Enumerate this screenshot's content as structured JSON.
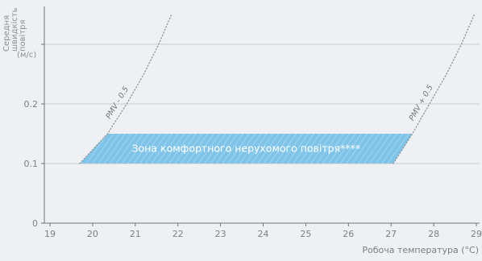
{
  "chart_data": {
    "type": "area",
    "ylabel_lines": [
      "Середня",
      "швидкість",
      "повітря"
    ],
    "ylabel_unit": "(м/с)",
    "xlabel": "Робоча температура (°C)",
    "x_ticks": [
      19,
      20,
      21,
      22,
      23,
      24,
      25,
      26,
      27,
      28,
      29
    ],
    "y_ticks": [
      {
        "value": 0,
        "label": "0"
      },
      {
        "value": 0.1,
        "label": "0.1"
      },
      {
        "value": 0.2,
        "label": "0.2"
      },
      {
        "value": 0.3,
        "label": ""
      }
    ],
    "xlim": [
      18.9,
      29.1
    ],
    "ylim": [
      0,
      0.36
    ],
    "grid": true,
    "comfort_zone": {
      "label": "Зона комфортного нерухомого повітря****",
      "polygon": [
        [
          19.7,
          0.1
        ],
        [
          20.35,
          0.15
        ],
        [
          27.5,
          0.15
        ],
        [
          27.05,
          0.1
        ]
      ],
      "fill": "#7fc4e8"
    },
    "curves": [
      {
        "label": "PMV - 0.5",
        "points": [
          [
            19.7,
            0.1
          ],
          [
            20.35,
            0.15
          ],
          [
            20.8,
            0.2
          ],
          [
            21.2,
            0.25
          ],
          [
            21.55,
            0.3
          ],
          [
            21.85,
            0.35
          ]
        ]
      },
      {
        "label": "PMV + 0.5",
        "points": [
          [
            27.05,
            0.1
          ],
          [
            27.5,
            0.15
          ],
          [
            27.9,
            0.2
          ],
          [
            28.3,
            0.25
          ],
          [
            28.65,
            0.3
          ],
          [
            28.95,
            0.35
          ]
        ]
      }
    ]
  },
  "colors": {
    "background": "#eef0f3",
    "grid": "#c9ccd1",
    "axis": "#6e737a",
    "curve": "#8e9399",
    "zone_fill": "#7fc4e8",
    "zone_text": "#ffffff"
  }
}
